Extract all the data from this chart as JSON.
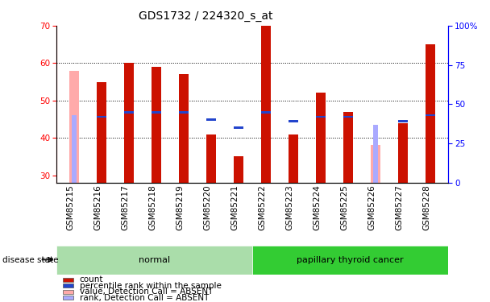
{
  "title": "GDS1732 / 224320_s_at",
  "samples": [
    "GSM85215",
    "GSM85216",
    "GSM85217",
    "GSM85218",
    "GSM85219",
    "GSM85220",
    "GSM85221",
    "GSM85222",
    "GSM85223",
    "GSM85224",
    "GSM85225",
    "GSM85226",
    "GSM85227",
    "GSM85228"
  ],
  "count_values": [
    58,
    55,
    60,
    59,
    57,
    41,
    35,
    70,
    41,
    52,
    47,
    0,
    44,
    65
  ],
  "rank_values": [
    43,
    42,
    45,
    45,
    45,
    40,
    35,
    45,
    39,
    42,
    42,
    0,
    39,
    43
  ],
  "absent_count": [
    58,
    0,
    0,
    0,
    0,
    0,
    0,
    0,
    0,
    0,
    0,
    38,
    0,
    0
  ],
  "absent_rank": [
    43,
    0,
    0,
    0,
    0,
    0,
    0,
    0,
    0,
    0,
    0,
    37,
    0,
    0
  ],
  "absent_flags": [
    true,
    false,
    false,
    false,
    false,
    false,
    false,
    false,
    false,
    false,
    false,
    true,
    false,
    false
  ],
  "groups": [
    {
      "label": "normal",
      "start": 0,
      "end": 6,
      "color": "#aaddaa"
    },
    {
      "label": "papillary thyroid cancer",
      "start": 7,
      "end": 13,
      "color": "#33cc33"
    }
  ],
  "ylim_left": [
    28,
    70
  ],
  "ylim_right": [
    0,
    100
  ],
  "yticks_left": [
    30,
    40,
    50,
    60,
    70
  ],
  "yticks_right": [
    0,
    25,
    50,
    75,
    100
  ],
  "bar_width": 0.35,
  "count_color": "#cc1100",
  "rank_color": "#2244cc",
  "absent_count_color": "#ffaaaa",
  "absent_rank_color": "#aaaaff",
  "plot_bg_color": "#ffffff",
  "group_normal_color": "#aaddaa",
  "group_cancer_color": "#33cc33",
  "grid_color": "#000000",
  "title_fontsize": 10,
  "tick_fontsize": 7.5,
  "label_fontsize": 7.5
}
